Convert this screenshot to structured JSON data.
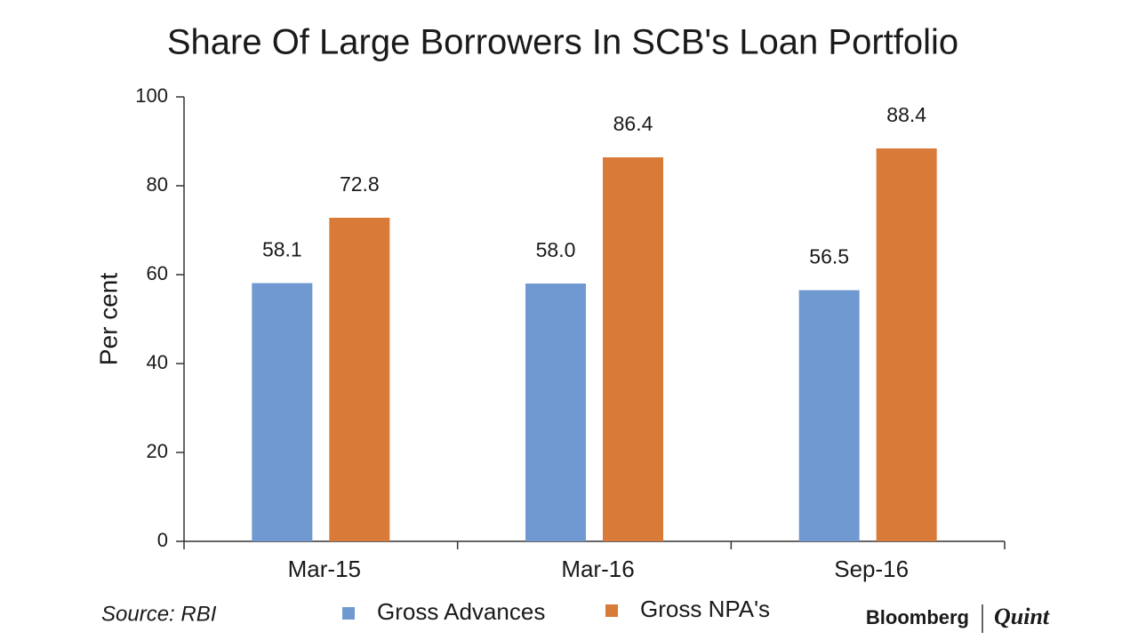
{
  "chart_data": {
    "type": "bar",
    "title": "Share Of Large Borrowers In SCB's Loan Portfolio",
    "y_label": "Per cent",
    "categories": [
      "Mar-15",
      "Mar-16",
      "Sep-16"
    ],
    "series": [
      {
        "name": "Gross Advances",
        "color": "#7099d1",
        "values": [
          58.1,
          58.0,
          56.5
        ],
        "value_labels": [
          "58.1",
          "58.0",
          "56.5"
        ]
      },
      {
        "name": "Gross NPA's",
        "color": "#d97b38",
        "values": [
          72.8,
          86.4,
          88.4
        ]
      }
    ],
    "ylim": [
      0,
      100
    ],
    "yticks": [
      0,
      20,
      40,
      60,
      80,
      100
    ],
    "source": "Source: RBI",
    "branding": [
      "Bloomberg",
      "Quint"
    ]
  }
}
